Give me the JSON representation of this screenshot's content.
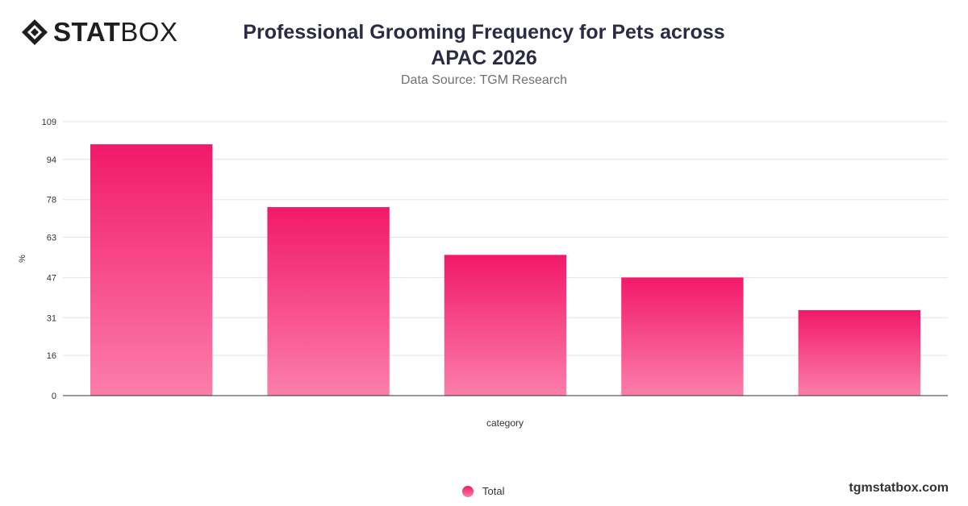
{
  "brand": {
    "logo_bold": "STAT",
    "logo_light": "BOX",
    "url": "tgmstatbox.com"
  },
  "header": {
    "title_line1": "Professional Grooming Frequency for Pets across",
    "title_line2": "APAC 2026",
    "subtitle": "Data Source: TGM Research"
  },
  "chart_data": {
    "type": "bar",
    "categories": [
      "",
      "",
      "",
      "",
      ""
    ],
    "series": [
      {
        "name": "Total",
        "values": [
          100,
          75,
          56,
          47,
          34
        ]
      }
    ],
    "xlabel": "category",
    "ylabel": "%",
    "ylim": [
      0,
      109
    ],
    "yticks": [
      0,
      16,
      31,
      47,
      63,
      78,
      94,
      109
    ],
    "grid": true,
    "legend_position": "bottom",
    "colors": {
      "bar_top": "#f2196a",
      "bar_bottom": "#fb7eaa",
      "grid": "#e3e3e3",
      "axis": "#333333"
    }
  }
}
